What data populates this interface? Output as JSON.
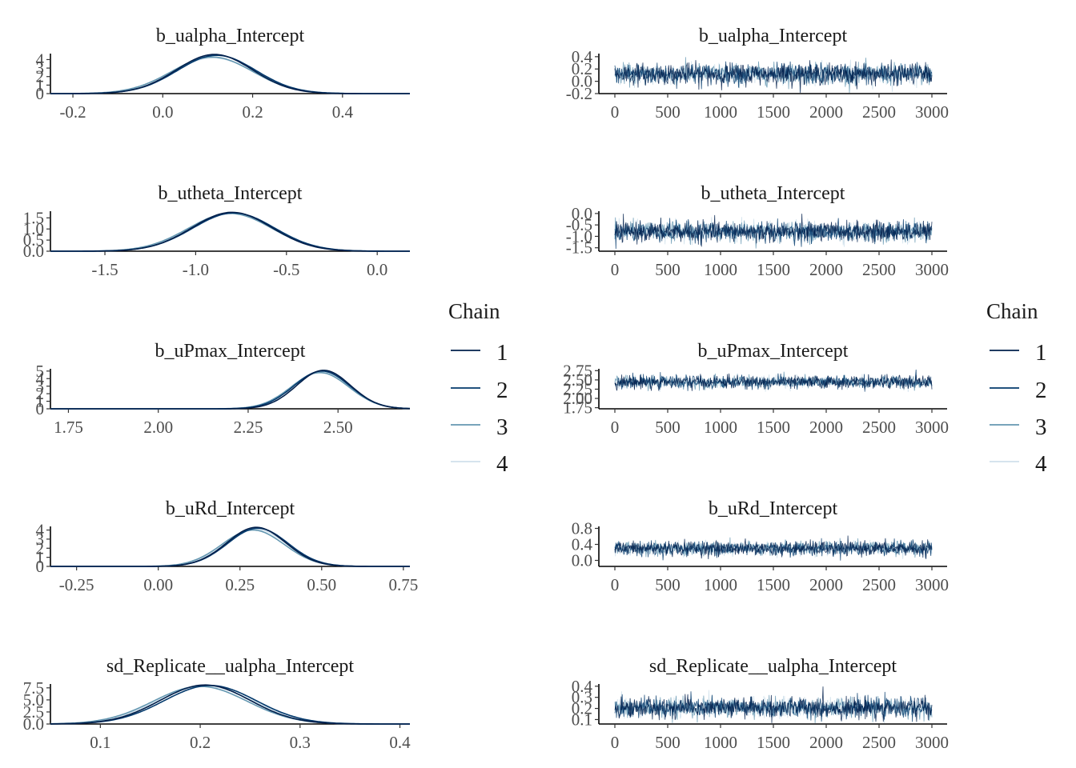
{
  "legend": {
    "title": "Chain",
    "entries": [
      {
        "label": "1",
        "color": "#011f4b"
      },
      {
        "label": "2",
        "color": "#03396c"
      },
      {
        "label": "3",
        "color": "#6497b1"
      },
      {
        "label": "4",
        "color": "#d1e1ec"
      }
    ]
  },
  "chart_data": [
    {
      "type": "line",
      "kind": "density",
      "title": "b_ualpha_Intercept",
      "xlim": [
        -0.25,
        0.55
      ],
      "ylim": [
        0,
        4.7
      ],
      "xticks": [
        -0.2,
        0.0,
        0.2,
        0.4
      ],
      "xtick_labels": [
        "-0.2",
        "0.0",
        "0.2",
        "0.4"
      ],
      "yticks": [
        0,
        1,
        2,
        3,
        4
      ],
      "ytick_labels": [
        "0",
        "1",
        "2",
        "3",
        "4"
      ],
      "series": [
        {
          "name": "1",
          "mean": 0.115,
          "sd": 0.085,
          "peak": 4.6
        },
        {
          "name": "2",
          "mean": 0.12,
          "sd": 0.087,
          "peak": 4.5
        },
        {
          "name": "3",
          "mean": 0.11,
          "sd": 0.09,
          "peak": 4.3
        },
        {
          "name": "4",
          "mean": 0.112,
          "sd": 0.092,
          "peak": 4.2
        }
      ]
    },
    {
      "type": "line",
      "kind": "trace",
      "title": "b_ualpha_Intercept",
      "xlim": [
        0,
        3000
      ],
      "ylim": [
        -0.2,
        0.45
      ],
      "xticks": [
        0,
        500,
        1000,
        1500,
        2000,
        2500,
        3000
      ],
      "xtick_labels": [
        "0",
        "500",
        "1000",
        "1500",
        "2000",
        "2500",
        "3000"
      ],
      "yticks": [
        -0.2,
        0.0,
        0.2,
        0.4
      ],
      "ytick_labels": [
        "-0.2",
        "0.0",
        "0.2",
        "0.4"
      ],
      "series": [
        {
          "name": "1",
          "mean": 0.12,
          "sd": 0.085
        },
        {
          "name": "2",
          "mean": 0.12,
          "sd": 0.085
        },
        {
          "name": "3",
          "mean": 0.115,
          "sd": 0.085
        },
        {
          "name": "4",
          "mean": 0.115,
          "sd": 0.085
        }
      ]
    },
    {
      "type": "line",
      "kind": "density",
      "title": "b_utheta_Intercept",
      "xlim": [
        -1.8,
        0.18
      ],
      "ylim": [
        0,
        1.8
      ],
      "xticks": [
        -1.5,
        -1.0,
        -0.5,
        0.0
      ],
      "xtick_labels": [
        "-1.5",
        "-1.0",
        "-0.5",
        "0.0"
      ],
      "yticks": [
        0.0,
        0.5,
        1.0,
        1.5
      ],
      "ytick_labels": [
        "0.0",
        "0.5",
        "1.0",
        "1.5"
      ],
      "series": [
        {
          "name": "1",
          "mean": -0.8,
          "sd": 0.22,
          "peak": 1.75
        },
        {
          "name": "2",
          "mean": -0.79,
          "sd": 0.225,
          "peak": 1.72
        },
        {
          "name": "3",
          "mean": -0.81,
          "sd": 0.23,
          "peak": 1.7
        },
        {
          "name": "4",
          "mean": -0.8,
          "sd": 0.228,
          "peak": 1.73
        }
      ]
    },
    {
      "type": "line",
      "kind": "trace",
      "title": "b_utheta_Intercept",
      "xlim": [
        0,
        3000
      ],
      "ylim": [
        -1.65,
        0.1
      ],
      "xticks": [
        0,
        500,
        1000,
        1500,
        2000,
        2500,
        3000
      ],
      "xtick_labels": [
        "0",
        "500",
        "1000",
        "1500",
        "2000",
        "2500",
        "3000"
      ],
      "yticks": [
        -1.5,
        -1.0,
        -0.5,
        0.0
      ],
      "ytick_labels": [
        "-1.5",
        "-1.0",
        "-0.5",
        "0.0"
      ],
      "series": [
        {
          "name": "1",
          "mean": -0.8,
          "sd": 0.22
        },
        {
          "name": "2",
          "mean": -0.8,
          "sd": 0.22
        },
        {
          "name": "3",
          "mean": -0.8,
          "sd": 0.22
        },
        {
          "name": "4",
          "mean": -0.8,
          "sd": 0.22
        }
      ]
    },
    {
      "type": "line",
      "kind": "density",
      "title": "b_uPmax_Intercept",
      "xlim": [
        1.7,
        2.7
      ],
      "ylim": [
        0,
        5.3
      ],
      "xticks": [
        1.75,
        2.0,
        2.25,
        2.5
      ],
      "xtick_labels": [
        "1.75",
        "2.00",
        "2.25",
        "2.50"
      ],
      "yticks": [
        0,
        1,
        2,
        3,
        4,
        5
      ],
      "ytick_labels": [
        "0",
        "1",
        "2",
        "3",
        "4",
        "5"
      ],
      "series": [
        {
          "name": "1",
          "mean": 2.46,
          "sd": 0.075,
          "peak": 5.1
        },
        {
          "name": "2",
          "mean": 2.455,
          "sd": 0.078,
          "peak": 5.0
        },
        {
          "name": "3",
          "mean": 2.45,
          "sd": 0.08,
          "peak": 4.8
        },
        {
          "name": "4",
          "mean": 2.452,
          "sd": 0.079,
          "peak": 4.9
        }
      ]
    },
    {
      "type": "line",
      "kind": "trace",
      "title": "b_uPmax_Intercept",
      "xlim": [
        0,
        3000
      ],
      "ylim": [
        1.72,
        2.8
      ],
      "xticks": [
        0,
        500,
        1000,
        1500,
        2000,
        2500,
        3000
      ],
      "xtick_labels": [
        "0",
        "500",
        "1000",
        "1500",
        "2000",
        "2500",
        "3000"
      ],
      "yticks": [
        1.75,
        2.0,
        2.25,
        2.5,
        2.75
      ],
      "ytick_labels": [
        "1.75",
        "2.00",
        "2.25",
        "2.50",
        "2.75"
      ],
      "series": [
        {
          "name": "1",
          "mean": 2.44,
          "sd": 0.085
        },
        {
          "name": "2",
          "mean": 2.44,
          "sd": 0.085
        },
        {
          "name": "3",
          "mean": 2.44,
          "sd": 0.085
        },
        {
          "name": "4",
          "mean": 2.44,
          "sd": 0.085
        }
      ]
    },
    {
      "type": "line",
      "kind": "density",
      "title": "b_uRd_Intercept",
      "xlim": [
        -0.33,
        0.77
      ],
      "ylim": [
        0,
        4.4
      ],
      "xticks": [
        -0.25,
        0.0,
        0.25,
        0.5,
        0.75
      ],
      "xtick_labels": [
        "-0.25",
        "0.00",
        "0.25",
        "0.50",
        "0.75"
      ],
      "yticks": [
        0,
        1,
        2,
        3,
        4
      ],
      "ytick_labels": [
        "0",
        "1",
        "2",
        "3",
        "4"
      ],
      "series": [
        {
          "name": "1",
          "mean": 0.3,
          "sd": 0.09,
          "peak": 4.3
        },
        {
          "name": "2",
          "mean": 0.305,
          "sd": 0.092,
          "peak": 4.2
        },
        {
          "name": "3",
          "mean": 0.29,
          "sd": 0.095,
          "peak": 4.0
        },
        {
          "name": "4",
          "mean": 0.298,
          "sd": 0.094,
          "peak": 4.1
        }
      ]
    },
    {
      "type": "line",
      "kind": "trace",
      "title": "b_uRd_Intercept",
      "xlim": [
        0,
        3000
      ],
      "ylim": [
        -0.15,
        0.85
      ],
      "xticks": [
        0,
        500,
        1000,
        1500,
        2000,
        2500,
        3000
      ],
      "xtick_labels": [
        "0",
        "500",
        "1000",
        "1500",
        "2000",
        "2500",
        "3000"
      ],
      "yticks": [
        0.0,
        0.4,
        0.8
      ],
      "ytick_labels": [
        "0.0",
        "0.4",
        "0.8"
      ],
      "series": [
        {
          "name": "1",
          "mean": 0.3,
          "sd": 0.09
        },
        {
          "name": "2",
          "mean": 0.3,
          "sd": 0.09
        },
        {
          "name": "3",
          "mean": 0.3,
          "sd": 0.09
        },
        {
          "name": "4",
          "mean": 0.3,
          "sd": 0.09
        }
      ]
    },
    {
      "type": "line",
      "kind": "density",
      "title": "sd_Replicate__ualpha_Intercept",
      "xlim": [
        0.05,
        0.41
      ],
      "ylim": [
        0,
        8.3
      ],
      "xticks": [
        0.1,
        0.2,
        0.3,
        0.4
      ],
      "xtick_labels": [
        "0.1",
        "0.2",
        "0.3",
        "0.4"
      ],
      "yticks": [
        0.0,
        2.5,
        5.0,
        7.5
      ],
      "ytick_labels": [
        "0.0",
        "2.5",
        "5.0",
        "7.5"
      ],
      "series": [
        {
          "name": "1",
          "mean": 0.205,
          "sd": 0.045,
          "peak": 8.1
        },
        {
          "name": "2",
          "mean": 0.21,
          "sd": 0.046,
          "peak": 8.0
        },
        {
          "name": "3",
          "mean": 0.2,
          "sd": 0.047,
          "peak": 7.8
        },
        {
          "name": "4",
          "mean": 0.205,
          "sd": 0.048,
          "peak": 7.9
        }
      ]
    },
    {
      "type": "line",
      "kind": "trace",
      "title": "sd_Replicate__ualpha_Intercept",
      "xlim": [
        0,
        3000
      ],
      "ylim": [
        0.06,
        0.42
      ],
      "xticks": [
        0,
        500,
        1000,
        1500,
        2000,
        2500,
        3000
      ],
      "xtick_labels": [
        "0",
        "500",
        "1000",
        "1500",
        "2000",
        "2500",
        "3000"
      ],
      "yticks": [
        0.1,
        0.2,
        0.3,
        0.4
      ],
      "ytick_labels": [
        "0.1",
        "0.2",
        "0.3",
        "0.4"
      ],
      "series": [
        {
          "name": "1",
          "mean": 0.205,
          "sd": 0.045
        },
        {
          "name": "2",
          "mean": 0.205,
          "sd": 0.045
        },
        {
          "name": "3",
          "mean": 0.205,
          "sd": 0.045
        },
        {
          "name": "4",
          "mean": 0.205,
          "sd": 0.045
        }
      ]
    }
  ]
}
